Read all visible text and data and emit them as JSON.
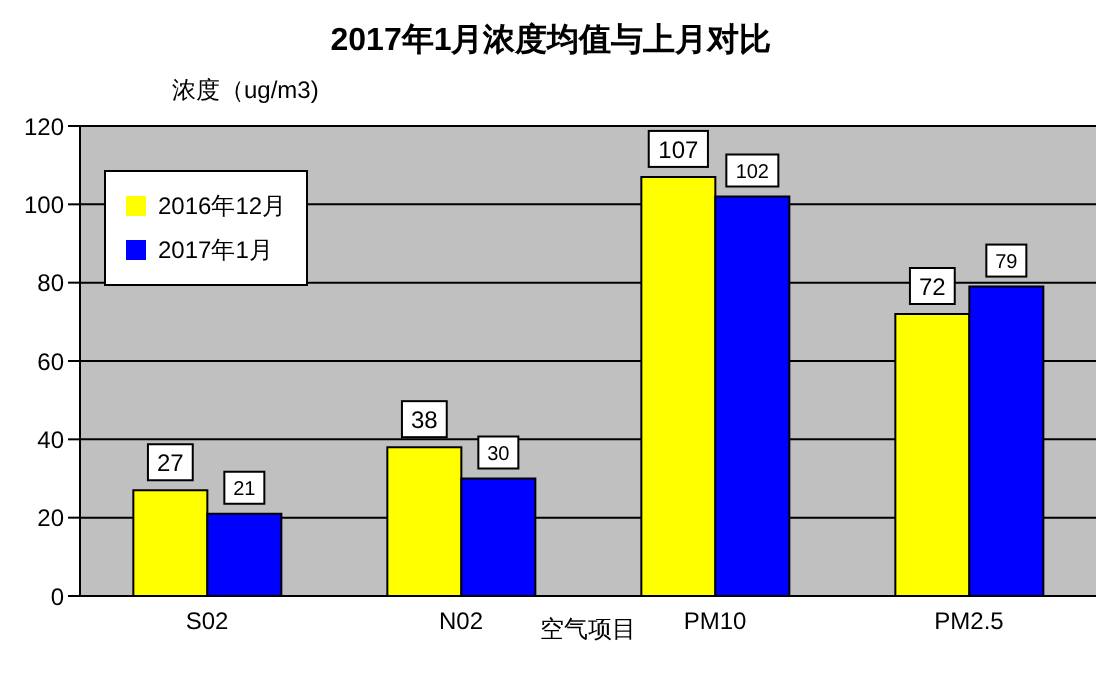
{
  "chart_data": {
    "type": "bar",
    "title": "2017年1月浓度均值与上月对比",
    "ylabel": "浓度（ug/m3)",
    "xlabel": "空气项目",
    "categories": [
      "S02",
      "N02",
      "PM10",
      "PM2.5"
    ],
    "series": [
      {
        "name": "2016年12月",
        "color": "#ffff00",
        "values": [
          27,
          38,
          107,
          72
        ]
      },
      {
        "name": "2017年1月",
        "color": "#0000ff",
        "values": [
          21,
          30,
          102,
          79
        ]
      }
    ],
    "ylim": [
      0,
      120
    ],
    "yticks": [
      0,
      20,
      40,
      60,
      80,
      100,
      120
    ],
    "grid": "y",
    "legend": "top left",
    "data_labels": true
  }
}
